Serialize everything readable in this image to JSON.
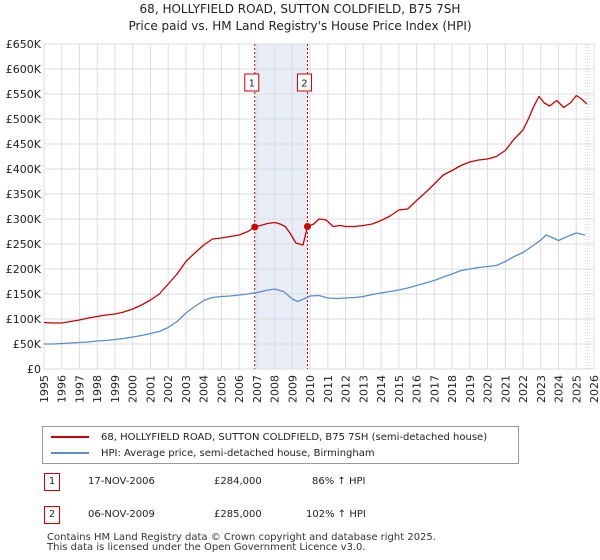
{
  "chart_data": {
    "type": "line",
    "title": "68, HOLLYFIELD ROAD, SUTTON COLDFIELD, B75 7SH",
    "subtitle": "Price paid vs. HM Land Registry's House Price Index (HPI)",
    "y_tick_labels": [
      "£0",
      "£50K",
      "£100K",
      "£150K",
      "£200K",
      "£250K",
      "£300K",
      "£350K",
      "£400K",
      "£450K",
      "£500K",
      "£550K",
      "£600K",
      "£650K"
    ],
    "y_ticks": [
      0,
      50000,
      100000,
      150000,
      200000,
      250000,
      300000,
      350000,
      400000,
      450000,
      500000,
      550000,
      600000,
      650000
    ],
    "x_tick_labels": [
      "1995",
      "1996",
      "1997",
      "1998",
      "1999",
      "2000",
      "2001",
      "2002",
      "2003",
      "2004",
      "2005",
      "2006",
      "2007",
      "2008",
      "2009",
      "2010",
      "2011",
      "2012",
      "2013",
      "2014",
      "2015",
      "2016",
      "2017",
      "2018",
      "2019",
      "2020",
      "2021",
      "2022",
      "2023",
      "2024",
      "2025",
      "2026"
    ],
    "xlim": [
      1995,
      2026
    ],
    "ylim": [
      0,
      650000
    ],
    "grid": true,
    "series": [
      {
        "name": "68, HOLLYFIELD ROAD, SUTTON COLDFIELD, B75 7SH (semi-detached house)",
        "color": "#cc0000",
        "x": [
          1995,
          1995.5,
          1996,
          1996.5,
          1997,
          1997.5,
          1998,
          1998.5,
          1999,
          1999.5,
          2000,
          2000.5,
          2001,
          2001.5,
          2002,
          2002.5,
          2003,
          2003.5,
          2004,
          2004.5,
          2005,
          2005.5,
          2006,
          2006.5,
          2006.88,
          2007.2,
          2007.6,
          2008,
          2008.3,
          2008.6,
          2008.9,
          2009.2,
          2009.6,
          2009.85,
          2010.2,
          2010.5,
          2010.9,
          2011.3,
          2011.7,
          2012,
          2012.5,
          2013,
          2013.5,
          2014,
          2014.5,
          2015,
          2015.5,
          2016,
          2016.5,
          2017,
          2017.5,
          2018,
          2018.5,
          2019,
          2019.5,
          2020,
          2020.5,
          2021,
          2021.5,
          2022,
          2022.3,
          2022.6,
          2022.9,
          2023.2,
          2023.5,
          2023.9,
          2024.3,
          2024.7,
          2025,
          2025.3,
          2025.6
        ],
        "values": [
          93000,
          92000,
          92000,
          95000,
          98000,
          102000,
          105000,
          108000,
          110000,
          114000,
          120000,
          128000,
          138000,
          150000,
          170000,
          190000,
          215000,
          232000,
          248000,
          260000,
          262000,
          265000,
          268000,
          275000,
          284000,
          287000,
          291000,
          293000,
          290000,
          285000,
          270000,
          252000,
          248000,
          285000,
          290000,
          300000,
          298000,
          285000,
          287000,
          285000,
          285000,
          287000,
          290000,
          297000,
          306000,
          318000,
          320000,
          337000,
          353000,
          370000,
          388000,
          397000,
          407000,
          414000,
          418000,
          420000,
          425000,
          437000,
          460000,
          478000,
          500000,
          525000,
          545000,
          532000,
          526000,
          537000,
          523000,
          533000,
          547000,
          540000,
          530000
        ]
      },
      {
        "name": "HPI: Average price, semi-detached house, Birmingham",
        "color": "#5b8ec9",
        "x": [
          1995,
          1995.5,
          1996,
          1996.5,
          1997,
          1997.5,
          1998,
          1998.5,
          1999,
          1999.5,
          2000,
          2000.5,
          2001,
          2001.5,
          2002,
          2002.5,
          2003,
          2003.5,
          2004,
          2004.5,
          2005,
          2005.5,
          2006,
          2006.5,
          2007,
          2007.5,
          2008,
          2008.5,
          2009,
          2009.3,
          2009.7,
          2010,
          2010.5,
          2011,
          2011.5,
          2012,
          2012.5,
          2013,
          2013.5,
          2014,
          2014.5,
          2015,
          2015.5,
          2016,
          2016.5,
          2017,
          2017.5,
          2018,
          2018.5,
          2019,
          2019.5,
          2020,
          2020.5,
          2021,
          2021.5,
          2022,
          2022.5,
          2023,
          2023.3,
          2023.7,
          2024,
          2024.5,
          2025,
          2025.5
        ],
        "values": [
          50000,
          50000,
          51000,
          52000,
          53000,
          54000,
          56000,
          57000,
          59000,
          61000,
          64000,
          67000,
          71000,
          75000,
          83000,
          95000,
          112000,
          125000,
          137000,
          143000,
          145000,
          146000,
          148000,
          150000,
          153000,
          157000,
          160000,
          155000,
          140000,
          135000,
          141000,
          146000,
          147000,
          142000,
          141000,
          142000,
          143000,
          145000,
          149000,
          152000,
          155000,
          158000,
          162000,
          167000,
          172000,
          177000,
          184000,
          190000,
          197000,
          200000,
          203000,
          205000,
          207000,
          215000,
          225000,
          233000,
          245000,
          258000,
          268000,
          262000,
          257000,
          265000,
          272000,
          268000
        ]
      }
    ],
    "annotations": [
      {
        "label": "1",
        "x": 2006.88,
        "value": 284000
      },
      {
        "label": "2",
        "x": 2009.85,
        "value": 285000
      }
    ],
    "shaded_period": [
      2006.88,
      2009.85
    ]
  },
  "legend": {
    "line1_label": "68, HOLLYFIELD ROAD, SUTTON COLDFIELD, B75 7SH (semi-detached house)",
    "line2_label": "HPI: Average price, semi-detached house, Birmingham"
  },
  "transactions": [
    {
      "num": "1",
      "date": "17-NOV-2006",
      "price": "£284,000",
      "hpi": "86% ↑ HPI"
    },
    {
      "num": "2",
      "date": "06-NOV-2009",
      "price": "£285,000",
      "hpi": "102% ↑ HPI"
    }
  ],
  "footer": {
    "line1": "Contains HM Land Registry data © Crown copyright and database right 2025.",
    "line2": "This data is licensed under the Open Government Licence v3.0."
  },
  "colors": {
    "property": "#cc0000",
    "hpi": "#5b8ec9",
    "shade": "#e8eef8",
    "marker": "#cc0000"
  }
}
